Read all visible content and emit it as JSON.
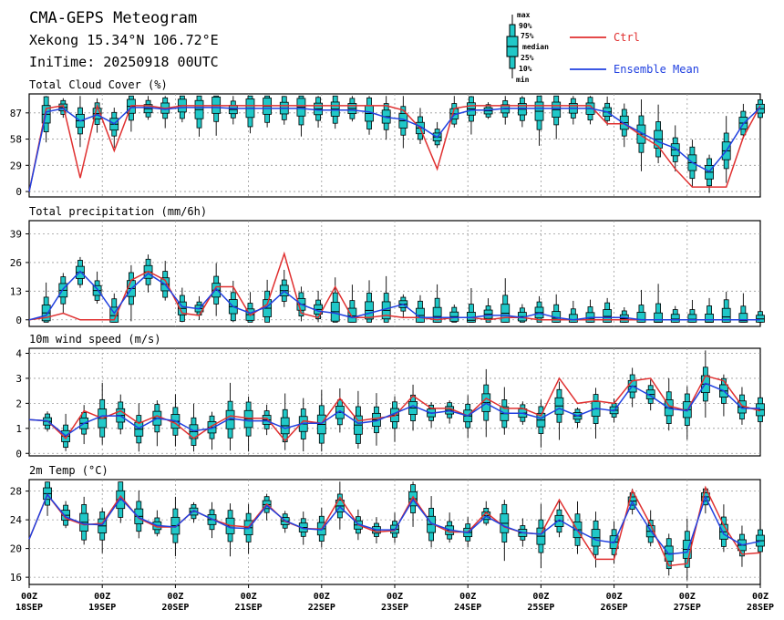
{
  "header": {
    "title": "CMA-GEPS Meteogram",
    "location": "Xekong 15.34°N 106.72°E",
    "init_time": "IniTime: 20250918 00UTC"
  },
  "legend": {
    "box_labels": [
      "max",
      "90%",
      "75%",
      "median",
      "25%",
      "10%",
      "min"
    ],
    "ctrl_label": "Ctrl",
    "ctrl_color": "#e03030",
    "mean_label": "Ensemble Mean",
    "mean_color": "#2040e0",
    "box_color": "#20c8c8"
  },
  "x_axis": {
    "ticks": [
      {
        "top": "00Z",
        "bottom": "18SEP"
      },
      {
        "top": "00Z",
        "bottom": "19SEP"
      },
      {
        "top": "00Z",
        "bottom": "20SEP"
      },
      {
        "top": "00Z",
        "bottom": "21SEP"
      },
      {
        "top": "00Z",
        "bottom": "22SEP"
      },
      {
        "top": "00Z",
        "bottom": "23SEP"
      },
      {
        "top": "00Z",
        "bottom": "24SEP"
      },
      {
        "top": "00Z",
        "bottom": "25SEP"
      },
      {
        "top": "00Z",
        "bottom": "26SEP"
      },
      {
        "top": "00Z",
        "bottom": "27SEP"
      },
      {
        "top": "00Z",
        "bottom": "28SEP"
      }
    ]
  },
  "chart_data": [
    {
      "type": "box",
      "title": "Total Cloud Cover (%)",
      "ylim": [
        -6,
        108
      ],
      "yticks": [
        0,
        29,
        58,
        87
      ],
      "ctrl": [
        0,
        92,
        95,
        15,
        95,
        45,
        95,
        95,
        92,
        95,
        95,
        95,
        95,
        95,
        95,
        95,
        95,
        95,
        95,
        95,
        95,
        95,
        90,
        70,
        25,
        92,
        95,
        95,
        95,
        95,
        95,
        95,
        95,
        95,
        75,
        75,
        62,
        50,
        25,
        5,
        5,
        5,
        60,
        95
      ],
      "mean": [
        0,
        88,
        92,
        78,
        85,
        75,
        93,
        93,
        91,
        93,
        93,
        93,
        92,
        92,
        92,
        92,
        92,
        90,
        90,
        90,
        88,
        82,
        80,
        72,
        60,
        85,
        90,
        90,
        92,
        92,
        92,
        92,
        92,
        92,
        88,
        75,
        65,
        55,
        48,
        32,
        22,
        45,
        75,
        93
      ]
    },
    {
      "type": "box",
      "title": "Total precipitation (mm/6h)",
      "ylim": [
        -3,
        45
      ],
      "yticks": [
        0,
        13,
        26,
        39
      ],
      "ctrl": [
        0,
        1,
        3,
        0,
        0,
        0,
        18,
        22,
        18,
        3,
        2,
        15,
        15,
        2,
        7,
        30,
        3,
        1,
        15,
        1,
        1,
        2,
        1,
        1,
        0,
        1,
        1,
        0,
        1,
        1,
        0,
        0,
        0,
        0,
        0,
        0,
        0,
        0,
        0,
        0,
        0,
        0,
        0,
        0
      ],
      "mean": [
        0,
        2,
        14,
        22,
        14,
        3,
        14,
        21,
        16,
        6,
        5,
        14,
        6,
        3,
        6,
        13,
        7,
        4,
        3,
        1,
        3,
        5,
        7,
        1,
        1,
        1,
        1,
        2,
        2,
        1,
        3,
        1,
        0,
        1,
        1,
        1,
        0,
        0,
        0,
        0,
        0,
        0,
        0,
        0
      ]
    },
    {
      "type": "box",
      "title": "10m wind speed (m/s)",
      "ylim": [
        -0.1,
        4.2
      ],
      "yticks": [
        0,
        1,
        2,
        3,
        4
      ],
      "ctrl": [
        1.35,
        1.3,
        0.6,
        1.7,
        1.4,
        1.7,
        1.2,
        1.5,
        1.2,
        0.6,
        1.1,
        1.5,
        1.4,
        1.4,
        0.5,
        1.3,
        1.2,
        2.2,
        1.3,
        1.4,
        1.5,
        2.3,
        1.8,
        1.8,
        1.5,
        2.2,
        1.8,
        1.8,
        1.5,
        3.0,
        2.0,
        2.1,
        2.0,
        2.9,
        3.0,
        1.9,
        1.7,
        3.1,
        2.9,
        1.9,
        1.7
      ],
      "mean": [
        1.35,
        1.3,
        0.7,
        1.2,
        1.5,
        1.5,
        1.0,
        1.4,
        1.3,
        0.9,
        1.0,
        1.4,
        1.3,
        1.3,
        1.0,
        1.2,
        1.2,
        1.7,
        1.2,
        1.3,
        1.6,
        1.9,
        1.6,
        1.7,
        1.5,
        2.0,
        1.6,
        1.6,
        1.4,
        1.8,
        1.5,
        1.8,
        1.7,
        2.7,
        2.3,
        1.8,
        1.7,
        2.8,
        2.5,
        1.8,
        1.8
      ]
    },
    {
      "type": "box",
      "title": "2m Temp (°C)",
      "ylim": [
        15,
        29.6
      ],
      "yticks": [
        16,
        20,
        24,
        28
      ],
      "ctrl": [
        21.3,
        27.5,
        24.2,
        23.3,
        23.5,
        27.3,
        24.2,
        23.0,
        23.0,
        25.3,
        24.1,
        23.2,
        23.0,
        26.2,
        23.8,
        22.8,
        22.7,
        27.1,
        23.3,
        22.3,
        22.5,
        27.2,
        23.5,
        22.3,
        22.3,
        25.0,
        23.0,
        22.2,
        22.0,
        26.8,
        22.5,
        18.5,
        18.5,
        28.1,
        23.3,
        17.6,
        17.9,
        28.5,
        23.2,
        19.2,
        19.4
      ],
      "mean": [
        21.3,
        27.5,
        24.4,
        23.4,
        23.3,
        27.0,
        24.3,
        23.2,
        23.0,
        25.3,
        24.1,
        22.9,
        22.8,
        26.0,
        23.9,
        22.8,
        22.6,
        25.8,
        23.4,
        22.6,
        22.6,
        26.8,
        23.5,
        22.6,
        22.2,
        24.5,
        23.1,
        22.2,
        22.0,
        24.0,
        22.5,
        21.2,
        20.8,
        26.5,
        22.5,
        19.2,
        19.5,
        27.2,
        22.0,
        20.5,
        21.0
      ]
    }
  ]
}
